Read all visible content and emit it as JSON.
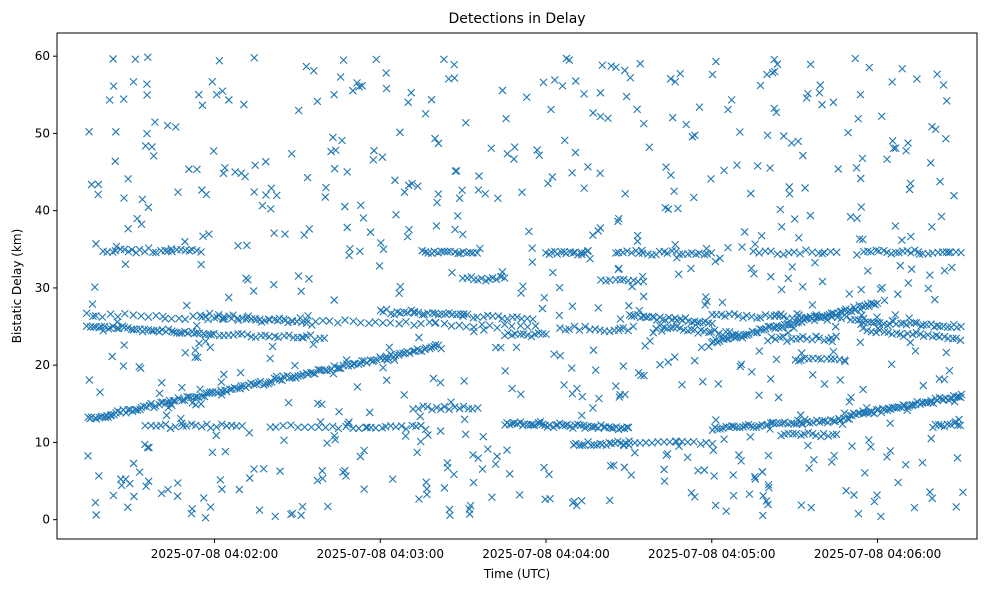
{
  "chart_data": {
    "type": "scatter",
    "title": "Detections in Delay",
    "xlabel": "Time (UTC)",
    "ylabel": "Bistatic Delay (km)",
    "marker": "x",
    "color": "#1f77b4",
    "grid": false,
    "xlim": [
      "2025-07-08 04:01:03",
      "2025-07-08 04:06:36"
    ],
    "ylim": [
      -2.5,
      63
    ],
    "xticks": [
      "2025-07-08 04:02:00",
      "2025-07-08 04:03:00",
      "2025-07-08 04:04:00",
      "2025-07-08 04:05:00",
      "2025-07-08 04:06:00"
    ],
    "yticks": [
      0,
      10,
      20,
      30,
      40,
      50,
      60
    ],
    "series": [
      {
        "tracks": [
          {
            "start": "2025-07-08 04:01:14",
            "end": "2025-07-08 04:03:22",
            "y_start": 13.0,
            "y_end": 22.5,
            "count": 150
          },
          {
            "start": "2025-07-08 04:01:14",
            "end": "2025-07-08 04:03:56",
            "y_start": 26.5,
            "y_end": 25.0,
            "count": 60
          },
          {
            "start": "2025-07-08 04:01:14",
            "end": "2025-07-08 04:02:00",
            "y_start": 25.0,
            "y_end": 24.0,
            "count": 45
          },
          {
            "start": "2025-07-08 04:01:20",
            "end": "2025-07-08 04:01:55",
            "y_start": 34.8,
            "y_end": 34.8,
            "count": 25
          },
          {
            "start": "2025-07-08 04:01:35",
            "end": "2025-07-08 04:02:10",
            "y_start": 12.2,
            "y_end": 12.2,
            "count": 20
          },
          {
            "start": "2025-07-08 04:01:55",
            "end": "2025-07-08 04:02:35",
            "y_start": 26.5,
            "y_end": 25.5,
            "count": 25
          },
          {
            "start": "2025-07-08 04:02:00",
            "end": "2025-07-08 04:02:40",
            "y_start": 24.0,
            "y_end": 23.5,
            "count": 25
          },
          {
            "start": "2025-07-08 04:02:20",
            "end": "2025-07-08 04:02:55",
            "y_start": 12.0,
            "y_end": 12.0,
            "count": 15
          },
          {
            "start": "2025-07-08 04:03:00",
            "end": "2025-07-08 04:03:30",
            "y_start": 27.0,
            "y_end": 26.5,
            "count": 25
          },
          {
            "start": "2025-07-08 04:02:55",
            "end": "2025-07-08 04:03:15",
            "y_start": 12.0,
            "y_end": 12.0,
            "count": 12
          },
          {
            "start": "2025-07-08 04:03:12",
            "end": "2025-07-08 04:03:35",
            "y_start": 14.5,
            "y_end": 14.5,
            "count": 15
          },
          {
            "start": "2025-07-08 04:03:15",
            "end": "2025-07-08 04:03:35",
            "y_start": 34.7,
            "y_end": 34.7,
            "count": 18
          },
          {
            "start": "2025-07-08 04:03:30",
            "end": "2025-07-08 04:03:45",
            "y_start": 31.2,
            "y_end": 31.2,
            "count": 12
          },
          {
            "start": "2025-07-08 04:03:30",
            "end": "2025-07-08 04:03:55",
            "y_start": 26.5,
            "y_end": 26.0,
            "count": 15
          },
          {
            "start": "2025-07-08 04:03:45",
            "end": "2025-07-08 04:04:30",
            "y_start": 12.5,
            "y_end": 11.8,
            "count": 50
          },
          {
            "start": "2025-07-08 04:03:45",
            "end": "2025-07-08 04:04:00",
            "y_start": 24.0,
            "y_end": 24.0,
            "count": 12
          },
          {
            "start": "2025-07-08 04:04:00",
            "end": "2025-07-08 04:04:15",
            "y_start": 34.6,
            "y_end": 34.6,
            "count": 15
          },
          {
            "start": "2025-07-08 04:04:10",
            "end": "2025-07-08 04:04:30",
            "y_start": 9.8,
            "y_end": 9.8,
            "count": 20
          },
          {
            "start": "2025-07-08 04:04:05",
            "end": "2025-07-08 04:04:30",
            "y_start": 24.8,
            "y_end": 24.5,
            "count": 15
          },
          {
            "start": "2025-07-08 04:04:20",
            "end": "2025-07-08 04:04:35",
            "y_start": 31.0,
            "y_end": 31.0,
            "count": 10
          },
          {
            "start": "2025-07-08 04:04:25",
            "end": "2025-07-08 04:05:00",
            "y_start": 34.5,
            "y_end": 34.5,
            "count": 25
          },
          {
            "start": "2025-07-08 04:04:30",
            "end": "2025-07-08 04:05:00",
            "y_start": 26.5,
            "y_end": 25.5,
            "count": 30
          },
          {
            "start": "2025-07-08 04:04:30",
            "end": "2025-07-08 04:05:00",
            "y_start": 10.0,
            "y_end": 10.0,
            "count": 15
          },
          {
            "start": "2025-07-08 04:04:40",
            "end": "2025-07-08 04:05:10",
            "y_start": 25.0,
            "y_end": 24.0,
            "count": 25
          },
          {
            "start": "2025-07-08 04:05:15",
            "end": "2025-07-08 04:05:45",
            "y_start": 34.6,
            "y_end": 34.6,
            "count": 15
          },
          {
            "start": "2025-07-08 04:05:00",
            "end": "2025-07-08 04:06:00",
            "y_start": 23.0,
            "y_end": 28.0,
            "count": 80
          },
          {
            "start": "2025-07-08 04:05:00",
            "end": "2025-07-08 04:05:55",
            "y_start": 26.5,
            "y_end": 26.0,
            "count": 35
          },
          {
            "start": "2025-07-08 04:05:00",
            "end": "2025-07-08 04:05:50",
            "y_start": 11.8,
            "y_end": 13.0,
            "count": 50
          },
          {
            "start": "2025-07-08 04:05:20",
            "end": "2025-07-08 04:05:45",
            "y_start": 23.5,
            "y_end": 23.5,
            "count": 18
          },
          {
            "start": "2025-07-08 04:05:30",
            "end": "2025-07-08 04:05:48",
            "y_start": 20.8,
            "y_end": 20.8,
            "count": 12
          },
          {
            "start": "2025-07-08 04:05:25",
            "end": "2025-07-08 04:05:45",
            "y_start": 11.0,
            "y_end": 11.0,
            "count": 15
          },
          {
            "start": "2025-07-08 04:05:50",
            "end": "2025-07-08 04:06:30",
            "y_start": 13.5,
            "y_end": 16.0,
            "count": 55
          },
          {
            "start": "2025-07-08 04:05:55",
            "end": "2025-07-08 04:06:15",
            "y_start": 34.7,
            "y_end": 34.7,
            "count": 15
          },
          {
            "start": "2025-07-08 04:06:15",
            "end": "2025-07-08 04:06:30",
            "y_start": 34.6,
            "y_end": 34.6,
            "count": 10
          },
          {
            "start": "2025-07-08 04:05:55",
            "end": "2025-07-08 04:06:30",
            "y_start": 25.5,
            "y_end": 25.0,
            "count": 30
          },
          {
            "start": "2025-07-08 04:05:55",
            "end": "2025-07-08 04:06:30",
            "y_start": 24.5,
            "y_end": 23.5,
            "count": 25
          },
          {
            "start": "2025-07-08 04:06:20",
            "end": "2025-07-08 04:06:30",
            "y_start": 12.3,
            "y_end": 12.3,
            "count": 10
          }
        ],
        "scattered": {
          "start": "2025-07-08 04:01:14",
          "end": "2025-07-08 04:06:31",
          "y_min": 0,
          "y_max": 60,
          "count": 720
        }
      }
    ]
  }
}
